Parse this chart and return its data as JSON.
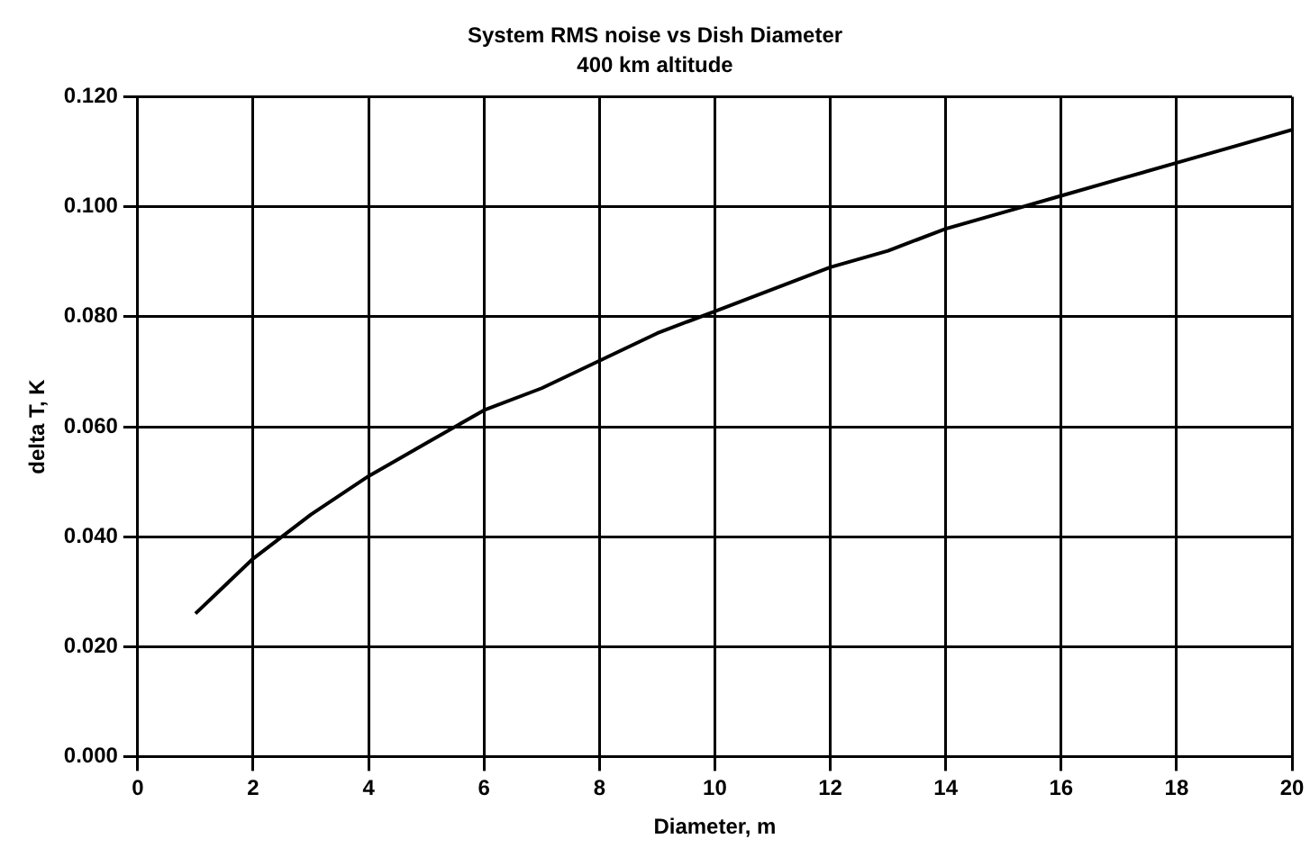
{
  "chart_data": {
    "type": "line",
    "title": "System RMS noise vs Dish Diameter",
    "subtitle": "400 km altitude",
    "xlabel": "Diameter, m",
    "ylabel": "delta T, K",
    "x": [
      1,
      2,
      2.5,
      3,
      4,
      5,
      6,
      7,
      8,
      9,
      10,
      11,
      12,
      13,
      14,
      15,
      16,
      17,
      18,
      19,
      20
    ],
    "series": [
      {
        "color": "#000000",
        "values": [
          0.026,
          0.036,
          0.04,
          0.044,
          0.051,
          0.057,
          0.063,
          0.067,
          0.072,
          0.077,
          0.081,
          0.085,
          0.089,
          0.092,
          0.096,
          0.099,
          0.102,
          0.105,
          0.108,
          0.111,
          0.114
        ]
      }
    ],
    "xlim": [
      0,
      20
    ],
    "xticks": [
      0,
      2,
      4,
      6,
      8,
      10,
      12,
      14,
      16,
      18,
      20
    ],
    "ylim": [
      0,
      0.12
    ],
    "yticks": [
      {
        "value": 0,
        "label": "0.000"
      },
      {
        "value": 0.02,
        "label": "0.020"
      },
      {
        "value": 0.04,
        "label": "0.040"
      },
      {
        "value": 0.06,
        "label": "0.060"
      },
      {
        "value": 0.08,
        "label": "0.080"
      },
      {
        "value": 0.1,
        "label": "0.100"
      },
      {
        "value": 0.12,
        "label": "0.120"
      }
    ],
    "grid": true,
    "legend": false,
    "marker": "none",
    "line_style": "solid"
  }
}
